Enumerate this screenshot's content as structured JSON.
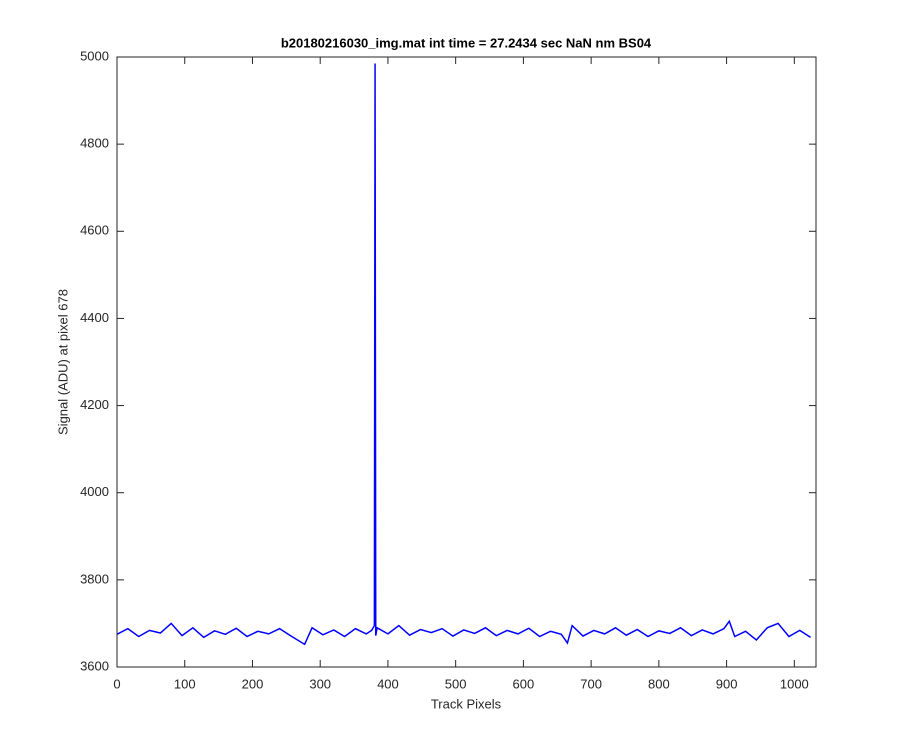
{
  "chart_data": {
    "type": "line",
    "title": "b20180216030_img.mat int time = 27.2434 sec  NaN nm BS04",
    "x_label": "Track Pixels",
    "y_label": "Signal (ADU) at pixel 678",
    "xlim": [
      0,
      1032
    ],
    "ylim": [
      3600,
      5000
    ],
    "xticks": [
      0,
      100,
      200,
      300,
      400,
      500,
      600,
      700,
      800,
      900,
      1000
    ],
    "yticks": [
      3600,
      3800,
      4000,
      4200,
      4400,
      4600,
      4800,
      5000
    ],
    "grid": false,
    "x": [
      0,
      16,
      32,
      48,
      64,
      80,
      96,
      112,
      128,
      144,
      160,
      176,
      192,
      208,
      224,
      240,
      256,
      277,
      288,
      304,
      320,
      336,
      352,
      368,
      376,
      380,
      381,
      382,
      384,
      400,
      416,
      432,
      448,
      464,
      480,
      496,
      512,
      528,
      544,
      560,
      576,
      592,
      608,
      624,
      640,
      656,
      665,
      672,
      688,
      704,
      720,
      736,
      752,
      768,
      784,
      800,
      816,
      832,
      848,
      864,
      880,
      896,
      904,
      912,
      928,
      944,
      960,
      976,
      992,
      1008,
      1024
    ],
    "series": [
      {
        "color": "#0000ff",
        "values": [
          3675,
          3688,
          3670,
          3684,
          3678,
          3700,
          3672,
          3690,
          3668,
          3683,
          3675,
          3689,
          3670,
          3682,
          3676,
          3688,
          3672,
          3652,
          3690,
          3674,
          3685,
          3670,
          3688,
          3676,
          3684,
          3695,
          4985,
          3672,
          3690,
          3676,
          3695,
          3673,
          3686,
          3679,
          3688,
          3671,
          3685,
          3677,
          3690,
          3672,
          3684,
          3676,
          3689,
          3670,
          3682,
          3675,
          3655,
          3695,
          3671,
          3684,
          3676,
          3690,
          3673,
          3686,
          3670,
          3683,
          3677,
          3690,
          3672,
          3685,
          3676,
          3688,
          3705,
          3670,
          3682,
          3662,
          3690,
          3700,
          3670,
          3684,
          3668
        ]
      }
    ]
  }
}
